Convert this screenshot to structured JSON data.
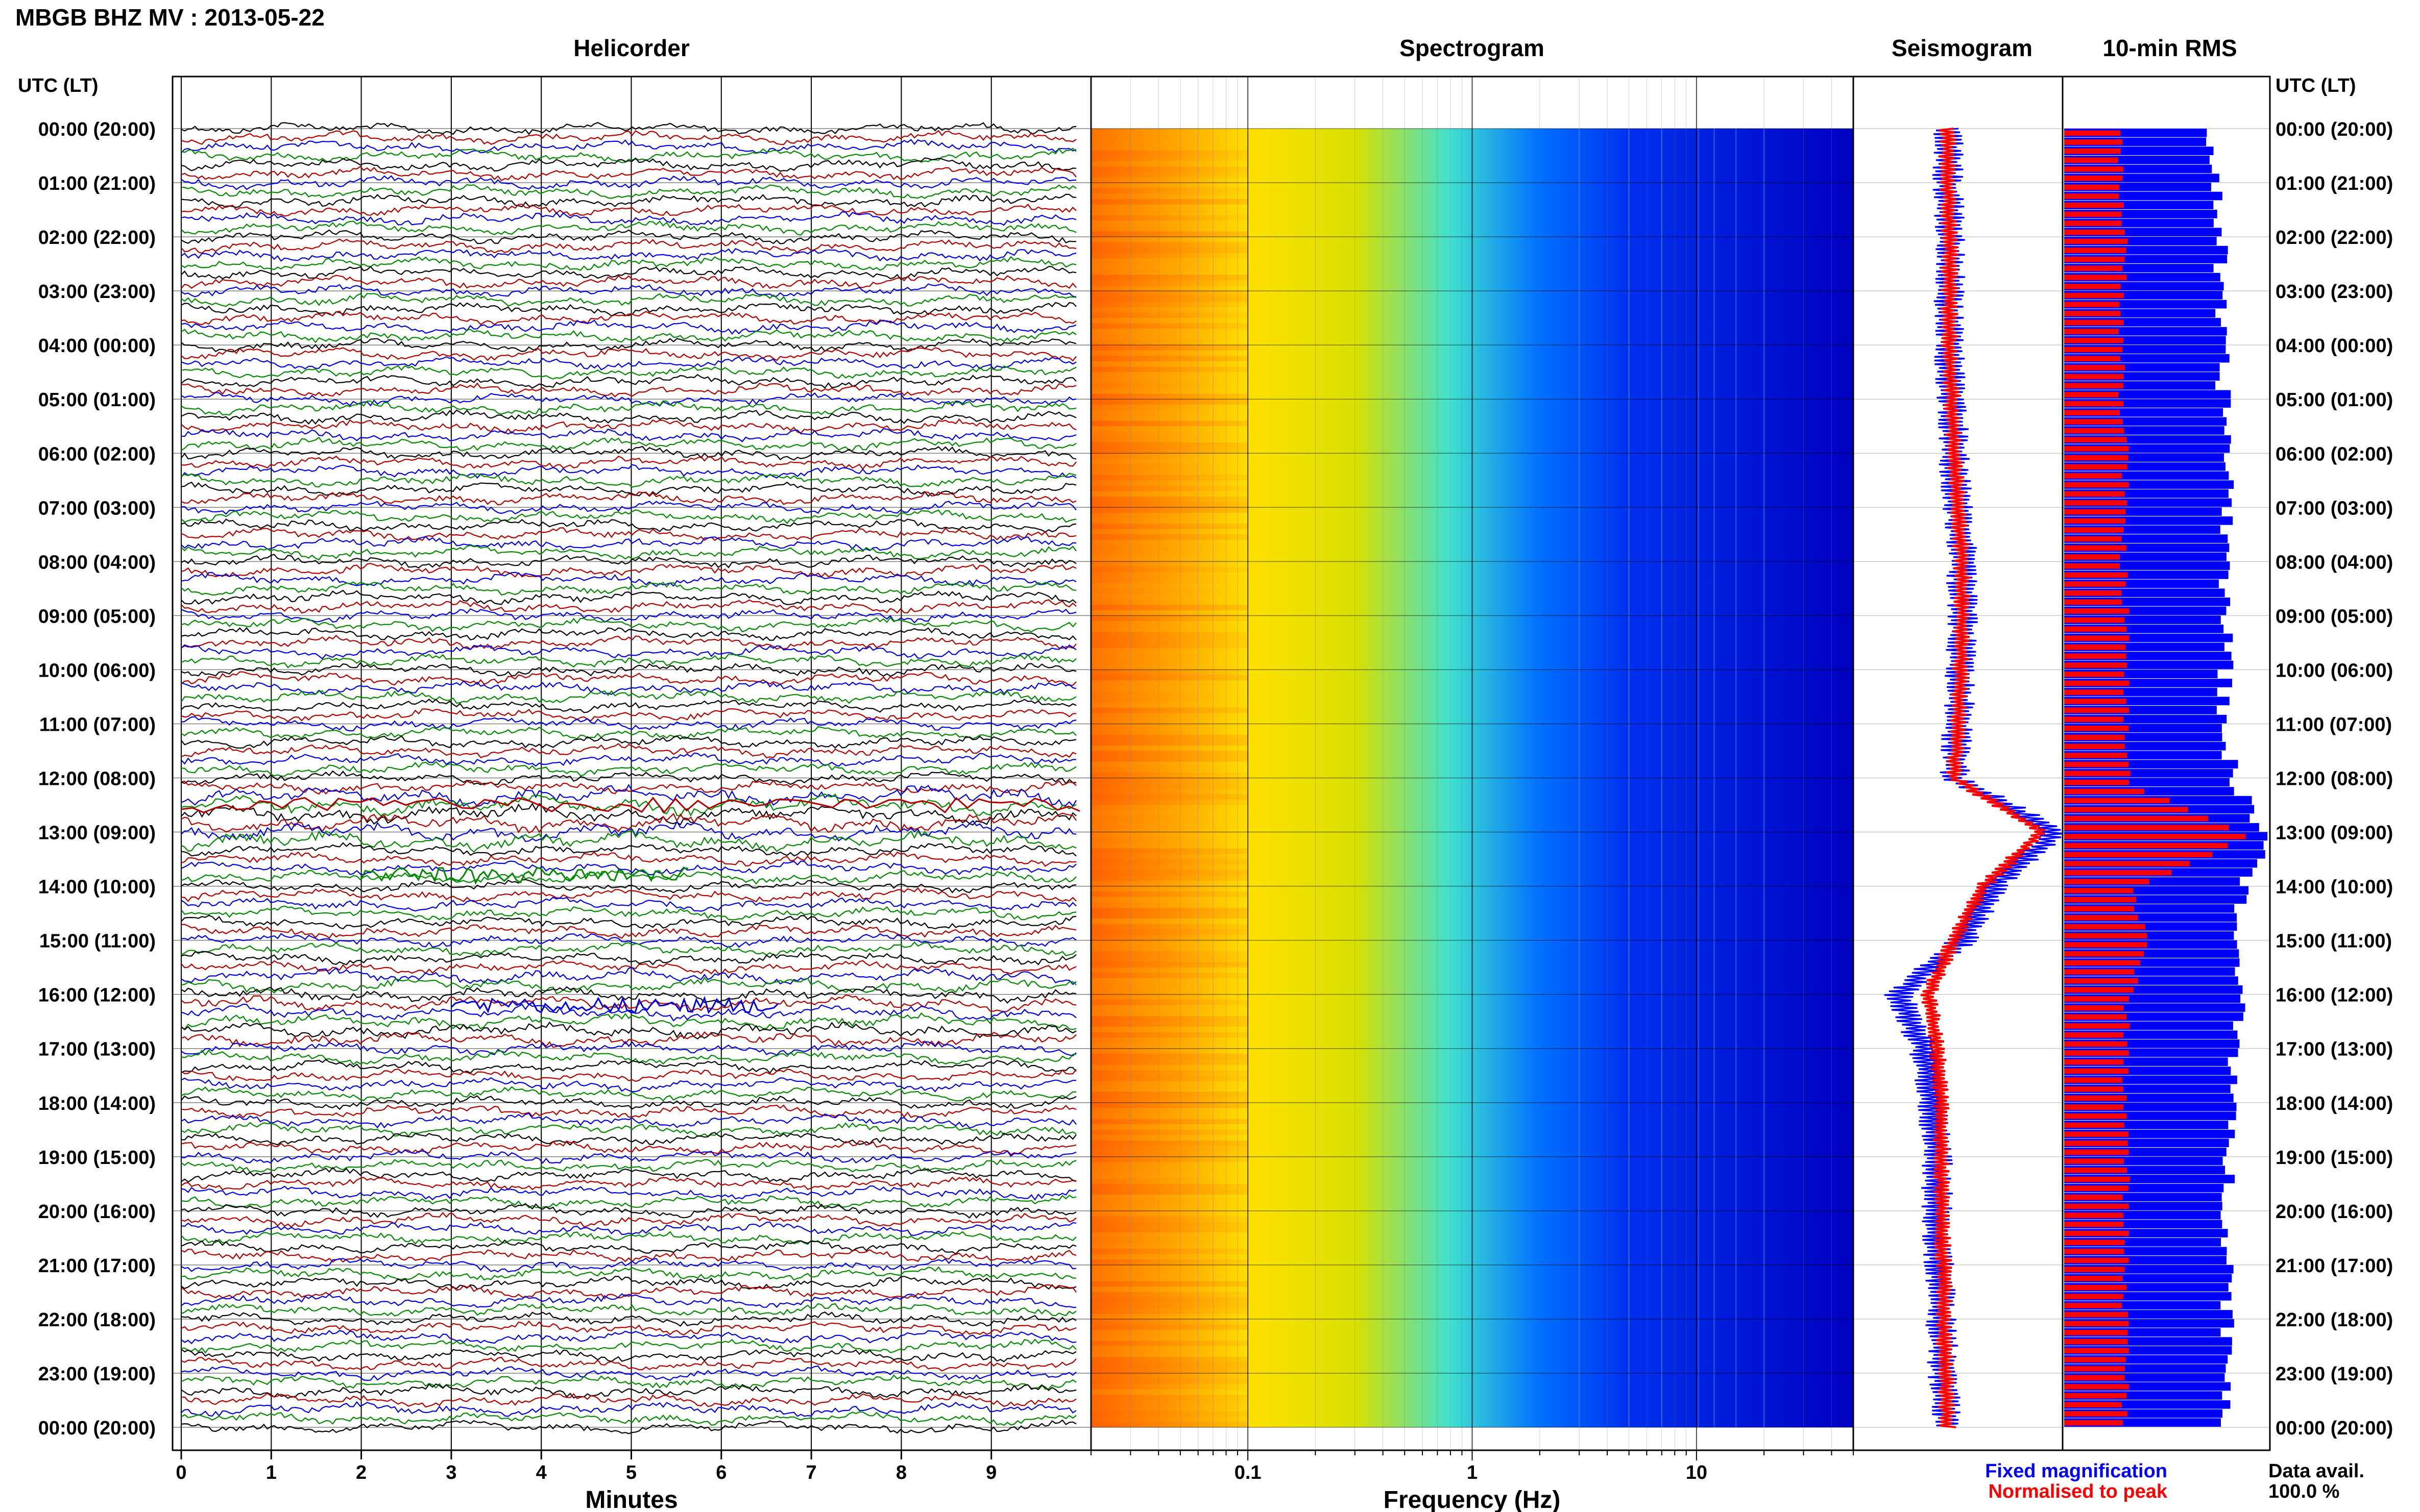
{
  "header": {
    "title": "MBGB BHZ MV : 2013-05-22",
    "utc_label_left": "UTC (LT)",
    "utc_label_right": "UTC (LT)"
  },
  "panels": {
    "helicorder": "Helicorder",
    "spectrogram": "Spectrogram",
    "seismogram": "Seismogram",
    "rms": "10-min RMS"
  },
  "axes": {
    "helicorder_xlabel": "Minutes",
    "spectrogram_xlabel": "Frequency (Hz)"
  },
  "time_labels": [
    "00:00 (20:00)",
    "01:00 (21:00)",
    "02:00 (22:00)",
    "03:00 (23:00)",
    "04:00 (00:00)",
    "05:00 (01:00)",
    "06:00 (02:00)",
    "07:00 (03:00)",
    "08:00 (04:00)",
    "09:00 (05:00)",
    "10:00 (06:00)",
    "11:00 (07:00)",
    "12:00 (08:00)",
    "13:00 (09:00)",
    "14:00 (10:00)",
    "15:00 (11:00)",
    "16:00 (12:00)",
    "17:00 (13:00)",
    "18:00 (14:00)",
    "19:00 (15:00)",
    "20:00 (16:00)",
    "21:00 (17:00)",
    "22:00 (18:00)",
    "23:00 (19:00)",
    "00:00 (20:00)"
  ],
  "legend": {
    "fixed": "Fixed magnification",
    "normalised": "Normalised to peak",
    "fixed_color": "#0000ff",
    "normalised_color": "#ff0000"
  },
  "data_avail": {
    "label": "Data avail.",
    "value": "100.0 %"
  },
  "chart_data": [
    {
      "type": "line",
      "title": "Helicorder",
      "xlabel": "Minutes",
      "x_ticks": [
        0,
        1,
        2,
        3,
        4,
        5,
        6,
        7,
        8,
        9
      ],
      "xlim": [
        0,
        10
      ],
      "rows_per_hour": 6,
      "hours": 24,
      "trace_colors": [
        "#000000",
        "#b00000",
        "#0000dd",
        "#008800"
      ],
      "events": [
        {
          "hour": 12.5,
          "minute": 0,
          "note": "large signal"
        },
        {
          "hour": 13.8,
          "minute": 2,
          "note": "burst"
        },
        {
          "hour": 16.2,
          "minute": 3,
          "note": "spikes"
        }
      ]
    },
    {
      "type": "heatmap",
      "title": "Spectrogram",
      "xlabel": "Frequency (Hz)",
      "x_scale": "log",
      "xlim": [
        0.02,
        50
      ],
      "x_ticks": [
        0.1,
        1,
        10
      ],
      "x_tick_labels": [
        "0.1",
        "1",
        "10"
      ],
      "color_stops": [
        {
          "hz": 0.02,
          "color": "#ff6a00"
        },
        {
          "hz": 0.05,
          "color": "#ffa500"
        },
        {
          "hz": 0.1,
          "color": "#ffe000"
        },
        {
          "hz": 0.3,
          "color": "#d8e000"
        },
        {
          "hz": 0.8,
          "color": "#40e0d0"
        },
        {
          "hz": 2,
          "color": "#0070ff"
        },
        {
          "hz": 5,
          "color": "#0030ee"
        },
        {
          "hz": 50,
          "color": "#0000c0"
        }
      ]
    },
    {
      "type": "line",
      "title": "Seismogram",
      "series": [
        {
          "name": "Fixed magnification",
          "values": [
            0.45,
            0.45,
            0.46,
            0.46,
            0.46,
            0.47,
            0.48,
            0.5,
            0.52,
            0.52,
            0.51,
            0.5,
            0.48,
            0.97,
            0.67,
            0.52,
            0.22,
            0.34,
            0.38,
            0.4,
            0.4,
            0.41,
            0.42,
            0.43,
            0.45
          ]
        },
        {
          "name": "Normalised to peak",
          "values": [
            0.45,
            0.45,
            0.46,
            0.46,
            0.46,
            0.47,
            0.48,
            0.5,
            0.52,
            0.52,
            0.51,
            0.5,
            0.48,
            0.9,
            0.62,
            0.48,
            0.36,
            0.4,
            0.42,
            0.42,
            0.42,
            0.43,
            0.43,
            0.44,
            0.45
          ]
        }
      ],
      "x": [
        0,
        1,
        2,
        3,
        4,
        5,
        6,
        7,
        8,
        9,
        10,
        11,
        12,
        13,
        14,
        15,
        16,
        17,
        18,
        19,
        20,
        21,
        22,
        23,
        24
      ]
    },
    {
      "type": "bar",
      "title": "10-min RMS",
      "orientation": "horizontal",
      "series": [
        {
          "name": "Fixed magnification",
          "color": "#0000ff",
          "values": [
            0.72,
            0.74,
            0.76,
            0.75,
            0.76,
            0.78,
            0.8,
            0.8,
            0.78,
            0.8,
            0.78,
            0.78,
            0.82,
            1.0,
            0.86,
            0.82,
            0.86,
            0.84,
            0.8,
            0.8,
            0.8,
            0.8,
            0.8,
            0.8
          ]
        },
        {
          "name": "Normalised to peak",
          "color": "#ff0000",
          "values": [
            0.28,
            0.28,
            0.29,
            0.29,
            0.28,
            0.28,
            0.3,
            0.29,
            0.29,
            0.3,
            0.3,
            0.3,
            0.31,
            0.9,
            0.33,
            0.4,
            0.31,
            0.3,
            0.3,
            0.3,
            0.3,
            0.3,
            0.3,
            0.3
          ]
        }
      ]
    }
  ]
}
